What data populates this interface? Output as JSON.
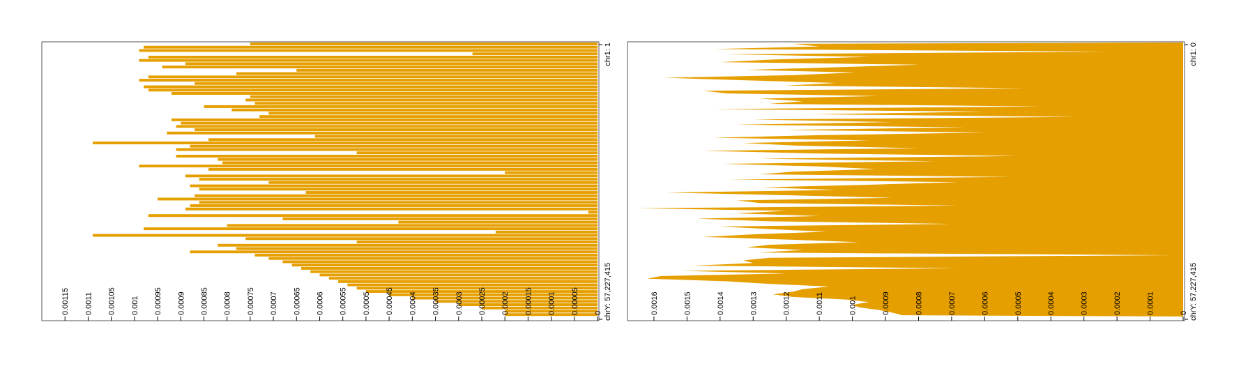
{
  "chart_data": [
    {
      "type": "bar",
      "title": "",
      "bar_color": "#E69F00",
      "genome_start_label": "chr1: 1",
      "genome_end_label": "chrY: 57,227,415",
      "ylim": [
        0,
        0.0012
      ],
      "tick_values": [
        0,
        5e-05,
        0.0001,
        0.00015,
        0.0002,
        0.00025,
        0.0003,
        0.00035,
        0.0004,
        0.00045,
        0.0005,
        0.00055,
        0.0006,
        0.00065,
        0.0007,
        0.00075,
        0.0008,
        0.00085,
        0.0009,
        0.00095,
        0.001,
        0.00105,
        0.0011,
        0.00115
      ],
      "tick_labels": [
        "0",
        "0.00005",
        "0.0001",
        "0.00015",
        "0.0002",
        "0.00025",
        "0.0003",
        "0.00035",
        "0.0004",
        "0.00045",
        "0.0005",
        "0.00055",
        "0.0006",
        "0.00065",
        "0.0007",
        "0.00075",
        "0.0008",
        "0.00085",
        "0.0009",
        "0.00095",
        "0.001",
        "0.00105",
        "0.0011",
        "0.00115"
      ],
      "values": [
        0.00075,
        0.00098,
        0.00099,
        0.00027,
        0.00097,
        0.00099,
        0.00089,
        0.00094,
        0.00065,
        0.00078,
        0.00097,
        0.00099,
        0.00087,
        0.00098,
        0.00097,
        0.00092,
        0.00075,
        0.00076,
        0.00074,
        0.00085,
        0.00079,
        0.00071,
        0.00073,
        0.00092,
        0.0009,
        0.00091,
        0.00087,
        0.00093,
        0.00061,
        0.00084,
        0.00109,
        0.00088,
        0.00091,
        0.00052,
        0.00091,
        0.00082,
        0.00081,
        0.00099,
        0.00084,
        0.0002,
        0.00089,
        0.00086,
        0.00071,
        0.00088,
        0.00086,
        0.00063,
        0.00087,
        0.00095,
        0.00086,
        0.00088,
        0.00089,
        2e-05,
        0.00097,
        0.00068,
        0.00043,
        0.0008,
        0.00098,
        0.00022,
        0.00109,
        0.00076,
        0.00052,
        0.00082,
        0.00078,
        0.00088,
        0.00074,
        0.00071,
        0.00068,
        0.00066,
        0.00064,
        0.00062,
        0.0006,
        0.00058,
        0.00056,
        0.00054,
        0.00052,
        0.0005,
        0.00045,
        0.0004,
        0.00035,
        0.0003,
        0.00025,
        0.0002,
        0.0002
      ]
    },
    {
      "type": "area",
      "title": "",
      "bar_color": "#E69F00",
      "genome_start_label": "chr1: 0",
      "genome_end_label": "chrY: 57,227,415",
      "ylim": [
        0,
        0.00168
      ],
      "tick_values": [
        0,
        0.0001,
        0.0002,
        0.0003,
        0.0004,
        0.0005,
        0.0006,
        0.0007,
        0.0008,
        0.0009,
        0.001,
        0.0011,
        0.0012,
        0.0013,
        0.0014,
        0.0015,
        0.0016
      ],
      "tick_labels": [
        "0",
        "0.0001",
        "0.0002",
        "0.0003",
        "0.0004",
        "0.0005",
        "0.0006",
        "0.0007",
        "0.0008",
        "0.0009",
        "0.001",
        "0.0011",
        "0.0012",
        "0.0013",
        "0.0014",
        "0.0015",
        "0.0016"
      ],
      "values": [
        0.00118,
        0.0011,
        0.00142,
        0.00023,
        0.00138,
        0.00095,
        0.00124,
        0.0014,
        0.0008,
        0.00105,
        0.00132,
        0.00099,
        0.00118,
        0.00157,
        0.00132,
        0.00105,
        0.0012,
        0.00048,
        0.00145,
        0.00138,
        0.00092,
        0.00128,
        0.00115,
        0.00125,
        0.00043,
        0.00142,
        0.0006,
        0.00112,
        0.00032,
        0.0013,
        0.00088,
        0.00135,
        0.00066,
        0.0012,
        0.0006,
        0.0011,
        0.00142,
        0.00095,
        0.00133,
        0.00117,
        0.0008,
        0.00145,
        0.00112,
        0.0005,
        0.00128,
        0.00075,
        0.00139,
        0.0011,
        0.00093,
        0.00118,
        0.00128,
        0.00052,
        0.00137,
        0.00068,
        0.00095,
        0.00127,
        0.00105,
        0.00156,
        0.0012,
        0.00088,
        0.00135,
        0.00128,
        0.00068,
        0.00165,
        0.0012,
        0.00135,
        0.0011,
        0.00147,
        0.00125,
        0.0007,
        0.0014,
        0.00125,
        0.00108,
        0.0013,
        0.00145,
        0.0012,
        0.00098,
        0.00125,
        0.00132,
        0.00115,
        0.00128,
        3e-05,
        0.00125,
        0.00133,
        0.0013,
        0.00148,
        0.00068,
        0.00152,
        0.0012,
        0.00158,
        0.00162,
        0.00138,
        0.00125,
        0.00107,
        0.00115,
        0.00118,
        0.00124,
        0.00118,
        0.00102,
        0.00095,
        0.001,
        0.00098,
        0.00092,
        0.00088,
        0.00085
      ]
    }
  ]
}
